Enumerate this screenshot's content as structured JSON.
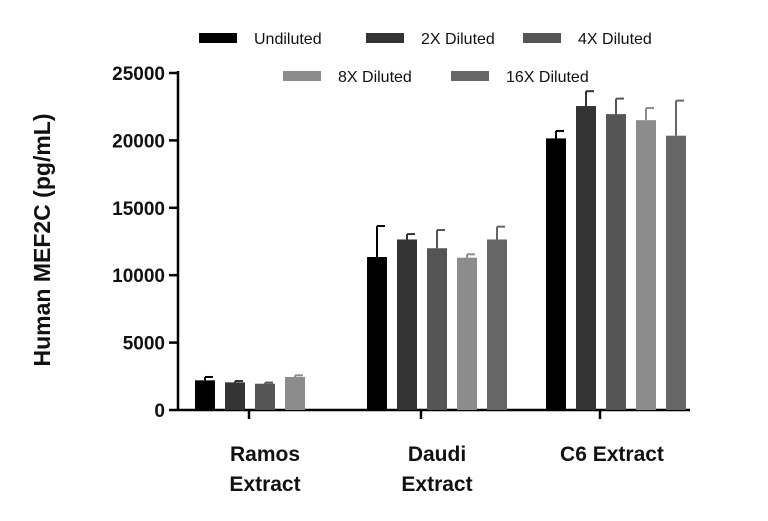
{
  "chart_data": {
    "type": "bar",
    "title": "",
    "xlabel": "",
    "ylabel": "Human MEF2C (pg/mL)",
    "ylim": [
      0,
      25000
    ],
    "yticks": [
      0,
      5000,
      10000,
      15000,
      20000,
      25000
    ],
    "ytick_labels": [
      "0",
      "5000",
      "10000",
      "15000",
      "20000",
      "25000"
    ],
    "grid": false,
    "legend_position": "top",
    "categories": [
      [
        "Ramos",
        "Extract"
      ],
      [
        "Daudi",
        "Extract"
      ],
      [
        "C6 Extract"
      ]
    ],
    "series": [
      {
        "name": "Undiluted",
        "color": "#000000",
        "values": [
          2200,
          11350,
          20150
        ],
        "errors": [
          250,
          2300,
          550
        ]
      },
      {
        "name": "2X Diluted",
        "color": "#333333",
        "values": [
          2050,
          12650,
          22550
        ],
        "errors": [
          100,
          400,
          1100
        ]
      },
      {
        "name": "4X Diluted",
        "color": "#555555",
        "values": [
          1950,
          12000,
          21950
        ],
        "errors": [
          80,
          1350,
          1150
        ]
      },
      {
        "name": "8X Diluted",
        "color": "#8c8c8c",
        "values": [
          2450,
          11300,
          21500
        ],
        "errors": [
          120,
          250,
          900
        ]
      },
      {
        "name": "16X Diluted",
        "color": "#666666",
        "values": [
          null,
          12650,
          20350
        ],
        "errors": [
          null,
          950,
          2600
        ]
      }
    ]
  }
}
